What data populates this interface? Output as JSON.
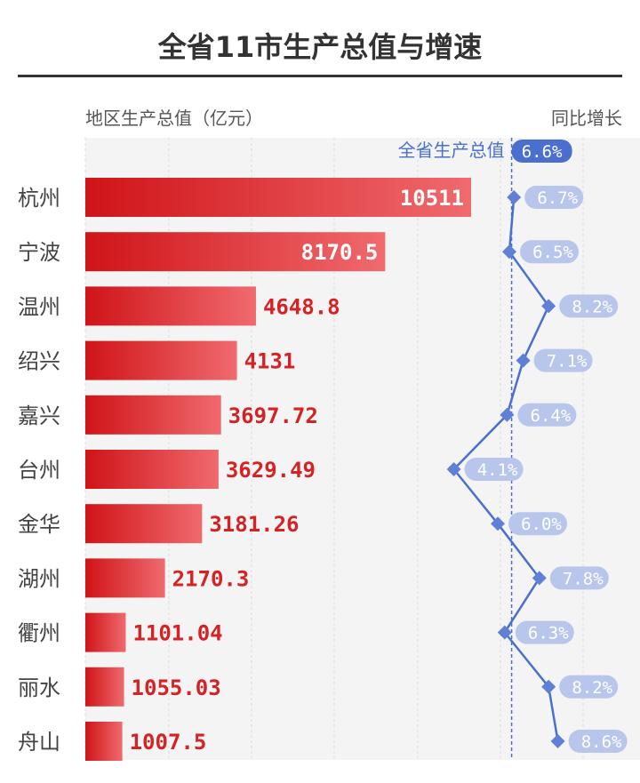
{
  "colors": {
    "bar_start": "#cf1418",
    "bar_end": "#f06a6e",
    "value_text": "#d42225",
    "value_text_inside": "#ffffff",
    "line": "#4a6fcf",
    "marker": "#5f80d6",
    "rate_pill": "#b8c6ec",
    "total_pill": "#4a6fcf",
    "panel_bg": "#f4f4f4",
    "grid": "#dddddd"
  },
  "chart_data": {
    "type": "bar",
    "title": "全省11市生产总值与增速",
    "ylabel": "地区生产总值（亿元）",
    "y2label": "同比增长",
    "categories": [
      "杭州",
      "宁波",
      "温州",
      "绍兴",
      "嘉兴",
      "台州",
      "金华",
      "湖州",
      "衢州",
      "丽水",
      "舟山"
    ],
    "series": [
      {
        "values": [
          10511,
          8170.5,
          4648.8,
          4131,
          3697.72,
          3629.49,
          3181.26,
          2170.3,
          1101.04,
          1055.03,
          1007.5
        ],
        "labels": [
          "10511",
          "8170.5",
          "4648.8",
          "4131",
          "3697.72",
          "3629.49",
          "3181.26",
          "2170.3",
          "1101.04",
          "1055.03",
          "1007.5"
        ]
      },
      {
        "type": "line",
        "values": [
          6.7,
          6.5,
          8.2,
          7.1,
          6.4,
          4.1,
          6.0,
          7.8,
          6.3,
          8.2,
          8.6
        ],
        "labels": [
          "6.7%",
          "6.5%",
          "8.2%",
          "7.1%",
          "6.4%",
          "4.1%",
          "6.0%",
          "7.8%",
          "6.3%",
          "8.2%",
          "8.6%"
        ]
      }
    ],
    "reference": {
      "name": "全省生产总值",
      "value": 6.6,
      "label": "6.6%"
    },
    "grid": true
  }
}
